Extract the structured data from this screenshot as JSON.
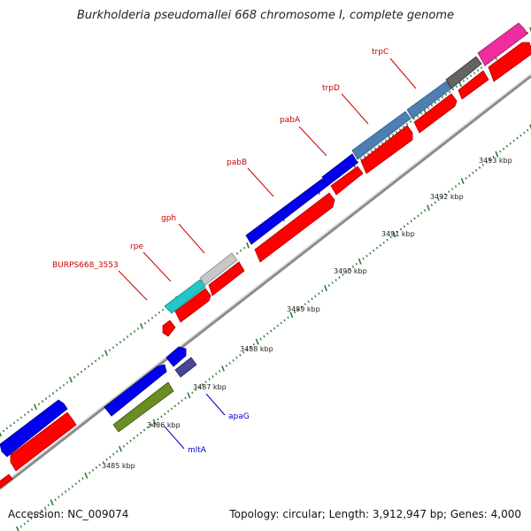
{
  "title": "Burkholderia pseudomallei 668 chromosome I, complete genome",
  "footer": {
    "accession_label": "Accession:",
    "accession": "NC_009074",
    "summary": "Topology: circular; Length: 3,912,947 bp; Genes: 4,000"
  },
  "colors": {
    "forward_red": "#ff0000",
    "reverse_red": "#ff0000",
    "blue": "#0000ee",
    "steel_blue": "#4f7fb2",
    "gray_dark": "#646464",
    "gray_light": "#c8c8c8",
    "cyan": "#22c7c7",
    "pink": "#ee2ea0",
    "slate_blue": "#4b4696",
    "olive": "#6b8e23",
    "tick_green": "#2e7d32",
    "backbone": "#8c8c8c",
    "label_red": "#cc0000",
    "label_blue": "#0000cc"
  },
  "ruler": [
    {
      "label": "3485 kbp"
    },
    {
      "label": "3486 kbp"
    },
    {
      "label": "3487 kbp"
    },
    {
      "label": "3488 kbp"
    },
    {
      "label": "3489 kbp"
    },
    {
      "label": "3490 kbp"
    },
    {
      "label": "3491 kbp"
    },
    {
      "label": "3492 kbp"
    },
    {
      "label": "3493 kbp"
    }
  ],
  "genes": [
    {
      "name": "trpC",
      "color": "pink",
      "labeled": true,
      "label_color": "label_red"
    },
    {
      "name": "",
      "color": "gray_dark",
      "labeled": false
    },
    {
      "name": "trpD",
      "color": "steel_blue",
      "labeled": true,
      "label_color": "label_red"
    },
    {
      "name": "pabA",
      "color": "steel_blue",
      "labeled": true,
      "label_color": "label_red"
    },
    {
      "name": "pabB",
      "color": "blue",
      "labeled": true,
      "label_color": "label_red"
    },
    {
      "name": "gph",
      "color": "gray_light",
      "labeled": true,
      "label_color": "label_red"
    },
    {
      "name": "rpe",
      "color": "cyan",
      "labeled": true,
      "label_color": "label_red"
    },
    {
      "name": "BURPS668_3553",
      "color": "cyan",
      "labeled": true,
      "label_color": "label_red"
    },
    {
      "name": "apaG",
      "color": "slate_blue",
      "labeled": true,
      "label_color": "label_blue"
    },
    {
      "name": "mltA",
      "color": "olive",
      "labeled": true,
      "label_color": "label_blue"
    }
  ]
}
